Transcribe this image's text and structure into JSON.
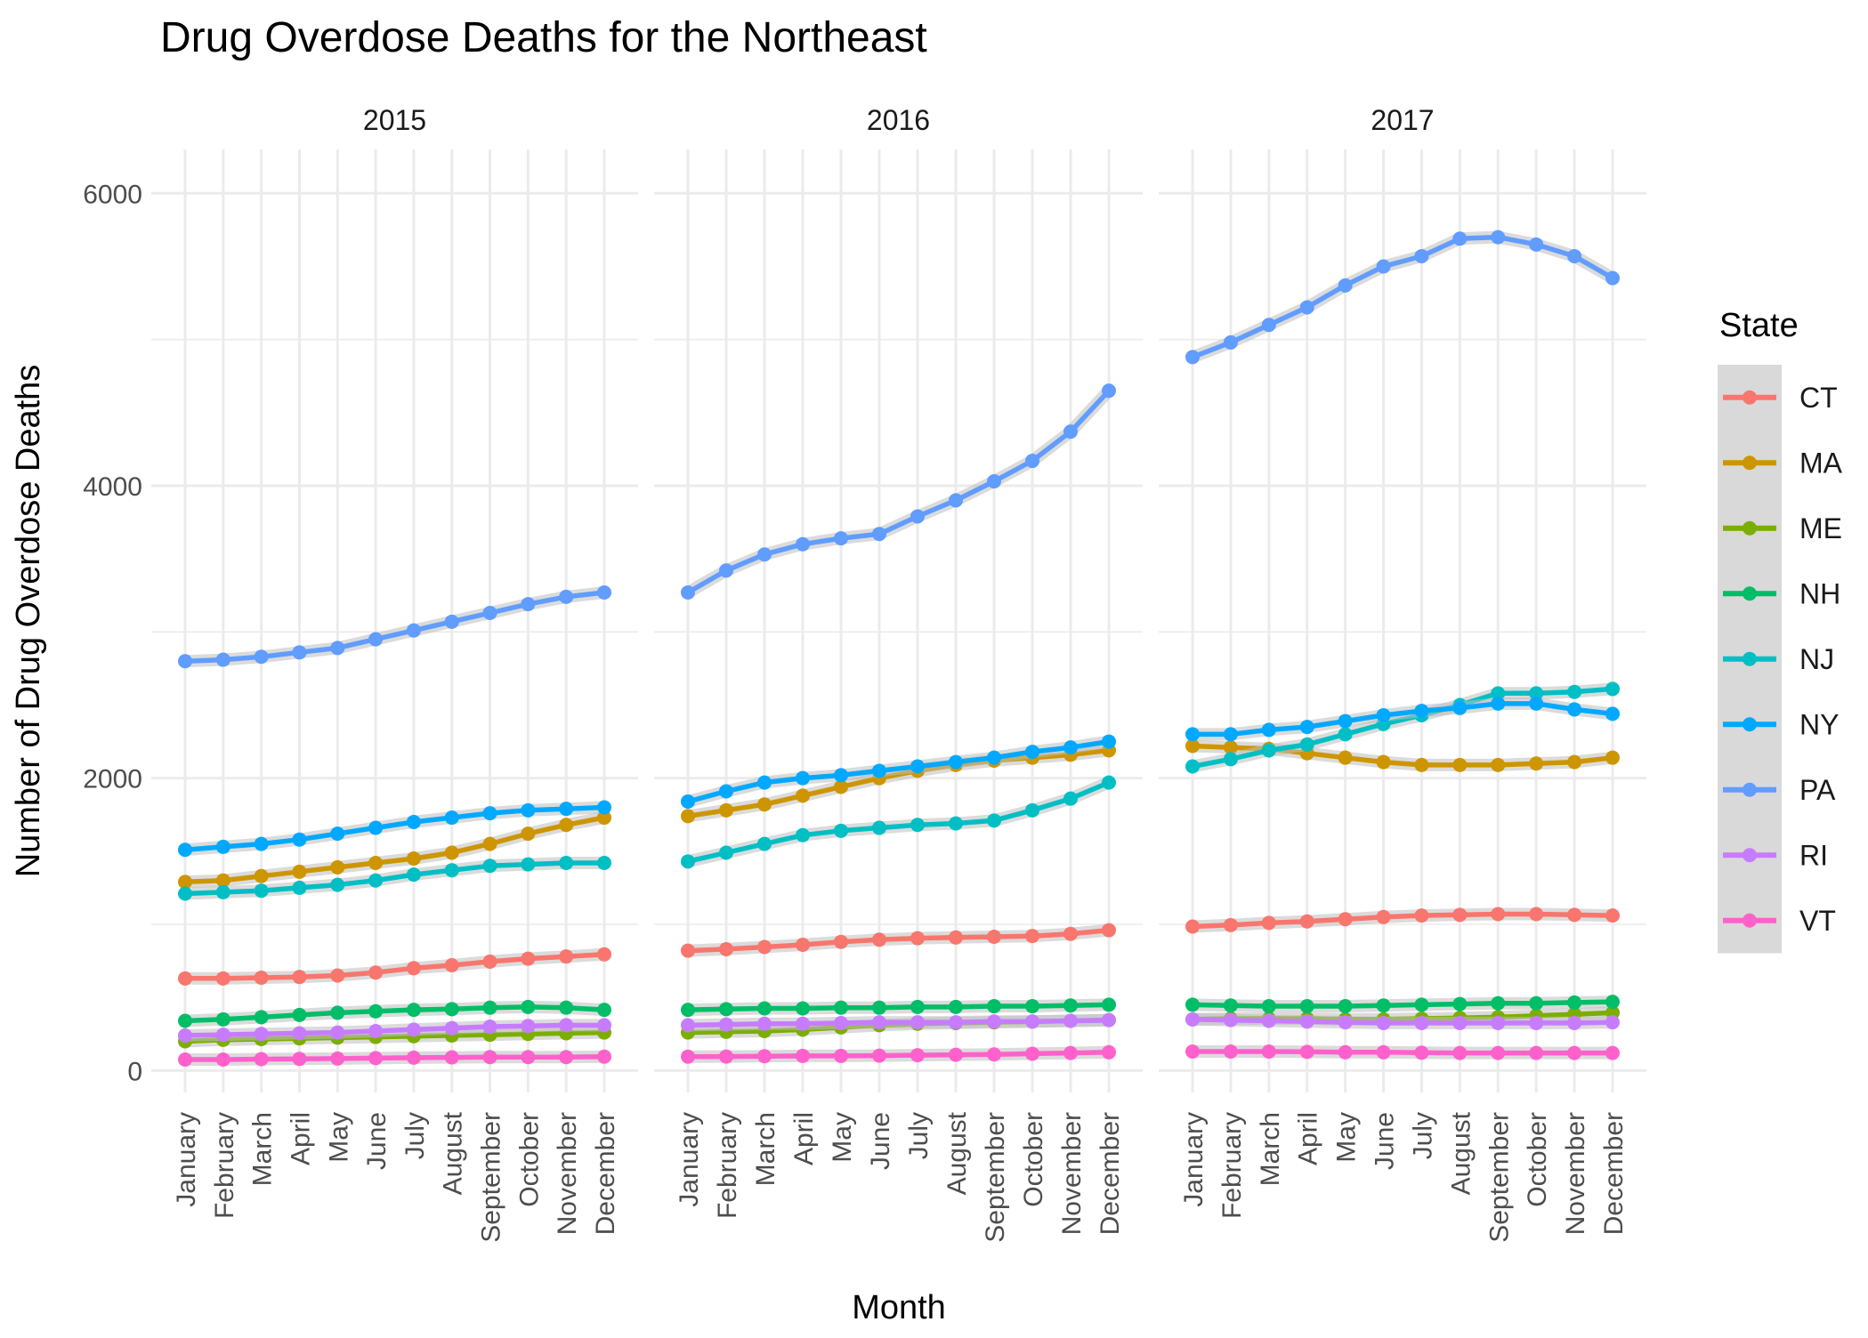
{
  "chart_data": {
    "type": "line",
    "title": "Drug Overdose Deaths for the Northeast",
    "xlabel": "Month",
    "ylabel": "Number of Drug Overdose Deaths",
    "ylim": [
      -150,
      6300
    ],
    "yticks": [
      0,
      2000,
      4000,
      6000
    ],
    "grid": true,
    "legend": {
      "title": "State",
      "placement": "right"
    },
    "categories": [
      "January",
      "February",
      "March",
      "April",
      "May",
      "June",
      "July",
      "August",
      "September",
      "October",
      "November",
      "December"
    ],
    "facets": [
      "2015",
      "2016",
      "2017"
    ],
    "series": [
      {
        "name": "CT",
        "color": "#F8766D",
        "values": [
          [
            630,
            630,
            635,
            640,
            650,
            670,
            700,
            720,
            745,
            765,
            780,
            795
          ],
          [
            820,
            830,
            845,
            860,
            880,
            895,
            905,
            910,
            915,
            920,
            935,
            960
          ],
          [
            985,
            995,
            1010,
            1020,
            1035,
            1050,
            1060,
            1065,
            1070,
            1070,
            1065,
            1060
          ]
        ]
      },
      {
        "name": "MA",
        "color": "#CD9600",
        "values": [
          [
            1290,
            1300,
            1330,
            1360,
            1390,
            1420,
            1450,
            1490,
            1550,
            1620,
            1680,
            1730
          ],
          [
            1740,
            1780,
            1820,
            1880,
            1940,
            2000,
            2050,
            2090,
            2120,
            2140,
            2160,
            2190
          ],
          [
            2220,
            2210,
            2200,
            2170,
            2140,
            2110,
            2090,
            2090,
            2090,
            2100,
            2110,
            2140
          ]
        ]
      },
      {
        "name": "ME",
        "color": "#7CAE00",
        "values": [
          [
            200,
            210,
            215,
            220,
            225,
            230,
            235,
            240,
            245,
            250,
            255,
            260
          ],
          [
            260,
            265,
            270,
            280,
            295,
            310,
            320,
            325,
            330,
            335,
            340,
            345
          ],
          [
            350,
            355,
            355,
            355,
            350,
            350,
            355,
            360,
            365,
            375,
            385,
            395
          ]
        ]
      },
      {
        "name": "NH",
        "color": "#00BE67",
        "values": [
          [
            340,
            350,
            365,
            380,
            395,
            405,
            415,
            420,
            430,
            435,
            430,
            415
          ],
          [
            415,
            420,
            425,
            425,
            430,
            430,
            435,
            435,
            440,
            440,
            445,
            450
          ],
          [
            450,
            445,
            440,
            440,
            440,
            445,
            450,
            455,
            460,
            460,
            465,
            470
          ]
        ]
      },
      {
        "name": "NJ",
        "color": "#00BFC4",
        "values": [
          [
            1210,
            1220,
            1230,
            1250,
            1270,
            1300,
            1340,
            1370,
            1400,
            1410,
            1420,
            1420
          ],
          [
            1430,
            1490,
            1550,
            1610,
            1640,
            1660,
            1680,
            1690,
            1710,
            1780,
            1860,
            1970
          ],
          [
            2080,
            2130,
            2190,
            2230,
            2300,
            2370,
            2430,
            2500,
            2580,
            2580,
            2590,
            2610
          ]
        ]
      },
      {
        "name": "NY",
        "color": "#00A9FF",
        "values": [
          [
            1510,
            1530,
            1550,
            1580,
            1620,
            1660,
            1700,
            1730,
            1760,
            1780,
            1790,
            1800
          ],
          [
            1840,
            1910,
            1970,
            2000,
            2020,
            2050,
            2080,
            2110,
            2140,
            2180,
            2210,
            2250
          ],
          [
            2300,
            2300,
            2330,
            2350,
            2390,
            2430,
            2460,
            2480,
            2510,
            2510,
            2470,
            2440
          ]
        ]
      },
      {
        "name": "PA",
        "color": "#619CFF",
        "values": [
          [
            2800,
            2810,
            2830,
            2860,
            2890,
            2950,
            3010,
            3070,
            3130,
            3190,
            3240,
            3270
          ],
          [
            3270,
            3420,
            3530,
            3600,
            3640,
            3670,
            3790,
            3900,
            4030,
            4170,
            4370,
            4650
          ],
          [
            4880,
            4980,
            5100,
            5220,
            5370,
            5500,
            5570,
            5690,
            5700,
            5650,
            5570,
            5420
          ]
        ]
      },
      {
        "name": "RI",
        "color": "#C77CFF",
        "values": [
          [
            240,
            245,
            250,
            255,
            260,
            270,
            280,
            290,
            300,
            305,
            310,
            310
          ],
          [
            310,
            315,
            320,
            320,
            325,
            330,
            330,
            330,
            335,
            335,
            340,
            345
          ],
          [
            350,
            345,
            340,
            335,
            330,
            325,
            325,
            325,
            325,
            325,
            325,
            330
          ]
        ]
      },
      {
        "name": "VT",
        "color": "#FF61CC",
        "values": [
          [
            75,
            75,
            78,
            80,
            82,
            85,
            88,
            90,
            92,
            92,
            92,
            95
          ],
          [
            95,
            96,
            98,
            100,
            100,
            102,
            105,
            108,
            110,
            115,
            120,
            125
          ],
          [
            130,
            130,
            130,
            128,
            125,
            125,
            122,
            120,
            120,
            120,
            120,
            120
          ]
        ]
      }
    ]
  }
}
